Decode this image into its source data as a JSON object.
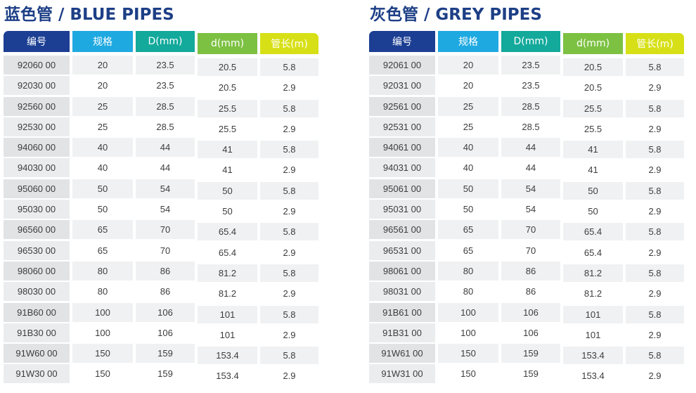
{
  "blue": {
    "title": "蓝色管 / BLUE PIPES",
    "headers": [
      "编号",
      "规格",
      "D(mm)",
      "d(mm)",
      "管长(m)"
    ],
    "rows": [
      [
        "92060 00",
        "20",
        "23.5",
        "20.5",
        "5.8"
      ],
      [
        "92030 00",
        "20",
        "23.5",
        "20.5",
        "2.9"
      ],
      [
        "92560 00",
        "25",
        "28.5",
        "25.5",
        "5.8"
      ],
      [
        "92530 00",
        "25",
        "28.5",
        "25.5",
        "2.9"
      ],
      [
        "94060 00",
        "40",
        "44",
        "41",
        "5.8"
      ],
      [
        "94030 00",
        "40",
        "44",
        "41",
        "2.9"
      ],
      [
        "95060 00",
        "50",
        "54",
        "50",
        "5.8"
      ],
      [
        "95030 00",
        "50",
        "54",
        "50",
        "2.9"
      ],
      [
        "96560 00",
        "65",
        "70",
        "65.4",
        "5.8"
      ],
      [
        "96530 00",
        "65",
        "70",
        "65.4",
        "2.9"
      ],
      [
        "98060 00",
        "80",
        "86",
        "81.2",
        "5.8"
      ],
      [
        "98030 00",
        "80",
        "86",
        "81.2",
        "2.9"
      ],
      [
        "91B60 00",
        "100",
        "106",
        "101",
        "5.8"
      ],
      [
        "91B30 00",
        "100",
        "106",
        "101",
        "2.9"
      ],
      [
        "91W60 00",
        "150",
        "159",
        "153.4",
        "5.8"
      ],
      [
        "91W30 00",
        "150",
        "159",
        "153.4",
        "2.9"
      ]
    ]
  },
  "grey": {
    "title": "灰色管 / GREY PIPES",
    "headers": [
      "编号",
      "规格",
      "D(mm)",
      "d(mm)",
      "管长(m)"
    ],
    "rows": [
      [
        "92061 00",
        "20",
        "23.5",
        "20.5",
        "5.8"
      ],
      [
        "92031 00",
        "20",
        "23.5",
        "20.5",
        "2.9"
      ],
      [
        "92561 00",
        "25",
        "28.5",
        "25.5",
        "5.8"
      ],
      [
        "92531 00",
        "25",
        "28.5",
        "25.5",
        "2.9"
      ],
      [
        "94061 00",
        "40",
        "44",
        "41",
        "5.8"
      ],
      [
        "94031 00",
        "40",
        "44",
        "41",
        "2.9"
      ],
      [
        "95061 00",
        "50",
        "54",
        "50",
        "5.8"
      ],
      [
        "95031 00",
        "50",
        "54",
        "50",
        "2.9"
      ],
      [
        "96561 00",
        "65",
        "70",
        "65.4",
        "5.8"
      ],
      [
        "96531 00",
        "65",
        "70",
        "65.4",
        "2.9"
      ],
      [
        "98061 00",
        "80",
        "86",
        "81.2",
        "5.8"
      ],
      [
        "98031 00",
        "80",
        "86",
        "81.2",
        "2.9"
      ],
      [
        "91B61 00",
        "100",
        "106",
        "101",
        "5.8"
      ],
      [
        "91B31 00",
        "100",
        "106",
        "101",
        "2.9"
      ],
      [
        "91W61 00",
        "150",
        "159",
        "153.4",
        "5.8"
      ],
      [
        "91W31 00",
        "150",
        "159",
        "153.4",
        "2.9"
      ]
    ]
  }
}
